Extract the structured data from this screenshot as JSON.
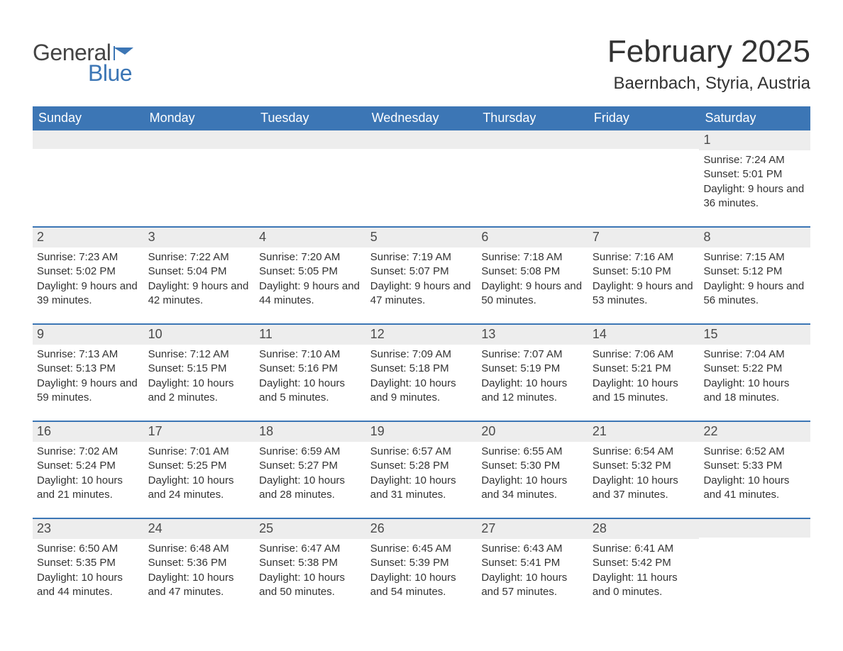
{
  "logo": {
    "text1": "General",
    "text2": "Blue",
    "mark_color": "#3c76b5"
  },
  "title": "February 2025",
  "location": "Baernbach, Styria, Austria",
  "colors": {
    "header_bg": "#3c76b5",
    "header_text": "#ffffff",
    "daynum_bg": "#ededed",
    "text": "#333333",
    "rule": "#3c76b5",
    "page_bg": "#ffffff"
  },
  "fonts": {
    "title_size_pt": 33,
    "location_size_pt": 18,
    "weekday_size_pt": 14,
    "daynum_size_pt": 14,
    "body_size_pt": 11
  },
  "weekdays": [
    "Sunday",
    "Monday",
    "Tuesday",
    "Wednesday",
    "Thursday",
    "Friday",
    "Saturday"
  ],
  "weeks": [
    [
      {
        "n": "",
        "sunrise": "",
        "sunset": "",
        "daylight": ""
      },
      {
        "n": "",
        "sunrise": "",
        "sunset": "",
        "daylight": ""
      },
      {
        "n": "",
        "sunrise": "",
        "sunset": "",
        "daylight": ""
      },
      {
        "n": "",
        "sunrise": "",
        "sunset": "",
        "daylight": ""
      },
      {
        "n": "",
        "sunrise": "",
        "sunset": "",
        "daylight": ""
      },
      {
        "n": "",
        "sunrise": "",
        "sunset": "",
        "daylight": ""
      },
      {
        "n": "1",
        "sunrise": "Sunrise: 7:24 AM",
        "sunset": "Sunset: 5:01 PM",
        "daylight": "Daylight: 9 hours and 36 minutes."
      }
    ],
    [
      {
        "n": "2",
        "sunrise": "Sunrise: 7:23 AM",
        "sunset": "Sunset: 5:02 PM",
        "daylight": "Daylight: 9 hours and 39 minutes."
      },
      {
        "n": "3",
        "sunrise": "Sunrise: 7:22 AM",
        "sunset": "Sunset: 5:04 PM",
        "daylight": "Daylight: 9 hours and 42 minutes."
      },
      {
        "n": "4",
        "sunrise": "Sunrise: 7:20 AM",
        "sunset": "Sunset: 5:05 PM",
        "daylight": "Daylight: 9 hours and 44 minutes."
      },
      {
        "n": "5",
        "sunrise": "Sunrise: 7:19 AM",
        "sunset": "Sunset: 5:07 PM",
        "daylight": "Daylight: 9 hours and 47 minutes."
      },
      {
        "n": "6",
        "sunrise": "Sunrise: 7:18 AM",
        "sunset": "Sunset: 5:08 PM",
        "daylight": "Daylight: 9 hours and 50 minutes."
      },
      {
        "n": "7",
        "sunrise": "Sunrise: 7:16 AM",
        "sunset": "Sunset: 5:10 PM",
        "daylight": "Daylight: 9 hours and 53 minutes."
      },
      {
        "n": "8",
        "sunrise": "Sunrise: 7:15 AM",
        "sunset": "Sunset: 5:12 PM",
        "daylight": "Daylight: 9 hours and 56 minutes."
      }
    ],
    [
      {
        "n": "9",
        "sunrise": "Sunrise: 7:13 AM",
        "sunset": "Sunset: 5:13 PM",
        "daylight": "Daylight: 9 hours and 59 minutes."
      },
      {
        "n": "10",
        "sunrise": "Sunrise: 7:12 AM",
        "sunset": "Sunset: 5:15 PM",
        "daylight": "Daylight: 10 hours and 2 minutes."
      },
      {
        "n": "11",
        "sunrise": "Sunrise: 7:10 AM",
        "sunset": "Sunset: 5:16 PM",
        "daylight": "Daylight: 10 hours and 5 minutes."
      },
      {
        "n": "12",
        "sunrise": "Sunrise: 7:09 AM",
        "sunset": "Sunset: 5:18 PM",
        "daylight": "Daylight: 10 hours and 9 minutes."
      },
      {
        "n": "13",
        "sunrise": "Sunrise: 7:07 AM",
        "sunset": "Sunset: 5:19 PM",
        "daylight": "Daylight: 10 hours and 12 minutes."
      },
      {
        "n": "14",
        "sunrise": "Sunrise: 7:06 AM",
        "sunset": "Sunset: 5:21 PM",
        "daylight": "Daylight: 10 hours and 15 minutes."
      },
      {
        "n": "15",
        "sunrise": "Sunrise: 7:04 AM",
        "sunset": "Sunset: 5:22 PM",
        "daylight": "Daylight: 10 hours and 18 minutes."
      }
    ],
    [
      {
        "n": "16",
        "sunrise": "Sunrise: 7:02 AM",
        "sunset": "Sunset: 5:24 PM",
        "daylight": "Daylight: 10 hours and 21 minutes."
      },
      {
        "n": "17",
        "sunrise": "Sunrise: 7:01 AM",
        "sunset": "Sunset: 5:25 PM",
        "daylight": "Daylight: 10 hours and 24 minutes."
      },
      {
        "n": "18",
        "sunrise": "Sunrise: 6:59 AM",
        "sunset": "Sunset: 5:27 PM",
        "daylight": "Daylight: 10 hours and 28 minutes."
      },
      {
        "n": "19",
        "sunrise": "Sunrise: 6:57 AM",
        "sunset": "Sunset: 5:28 PM",
        "daylight": "Daylight: 10 hours and 31 minutes."
      },
      {
        "n": "20",
        "sunrise": "Sunrise: 6:55 AM",
        "sunset": "Sunset: 5:30 PM",
        "daylight": "Daylight: 10 hours and 34 minutes."
      },
      {
        "n": "21",
        "sunrise": "Sunrise: 6:54 AM",
        "sunset": "Sunset: 5:32 PM",
        "daylight": "Daylight: 10 hours and 37 minutes."
      },
      {
        "n": "22",
        "sunrise": "Sunrise: 6:52 AM",
        "sunset": "Sunset: 5:33 PM",
        "daylight": "Daylight: 10 hours and 41 minutes."
      }
    ],
    [
      {
        "n": "23",
        "sunrise": "Sunrise: 6:50 AM",
        "sunset": "Sunset: 5:35 PM",
        "daylight": "Daylight: 10 hours and 44 minutes."
      },
      {
        "n": "24",
        "sunrise": "Sunrise: 6:48 AM",
        "sunset": "Sunset: 5:36 PM",
        "daylight": "Daylight: 10 hours and 47 minutes."
      },
      {
        "n": "25",
        "sunrise": "Sunrise: 6:47 AM",
        "sunset": "Sunset: 5:38 PM",
        "daylight": "Daylight: 10 hours and 50 minutes."
      },
      {
        "n": "26",
        "sunrise": "Sunrise: 6:45 AM",
        "sunset": "Sunset: 5:39 PM",
        "daylight": "Daylight: 10 hours and 54 minutes."
      },
      {
        "n": "27",
        "sunrise": "Sunrise: 6:43 AM",
        "sunset": "Sunset: 5:41 PM",
        "daylight": "Daylight: 10 hours and 57 minutes."
      },
      {
        "n": "28",
        "sunrise": "Sunrise: 6:41 AM",
        "sunset": "Sunset: 5:42 PM",
        "daylight": "Daylight: 11 hours and 0 minutes."
      },
      {
        "n": "",
        "sunrise": "",
        "sunset": "",
        "daylight": ""
      }
    ]
  ]
}
